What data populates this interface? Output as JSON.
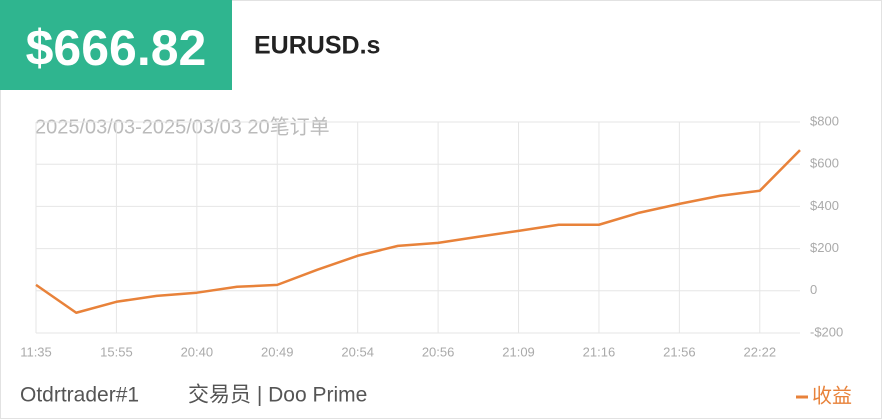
{
  "header": {
    "amount": "$666.82",
    "symbol": "EURUSD.s",
    "subtitle": "2025/03/03-2025/03/03 20笔订单"
  },
  "footer": {
    "trader": "Otdrtrader#1",
    "role": "交易员 | Doo Prime"
  },
  "chart_data": {
    "type": "line",
    "categories": [
      "11:35",
      null,
      "15:55",
      null,
      "20:40",
      null,
      "20:49",
      null,
      "20:54",
      null,
      "20:56",
      null,
      "21:09",
      null,
      "21:16",
      null,
      "21:56",
      null,
      "22:22",
      null
    ],
    "series": [
      {
        "name": "收益",
        "color": "#e8823a",
        "values": [
          28,
          -104,
          -52,
          -24,
          -9,
          19,
          28,
          100,
          166,
          213,
          227,
          256,
          284,
          313,
          313,
          370,
          412,
          450,
          474,
          666.82
        ]
      }
    ],
    "ylim": [
      -200,
      800
    ],
    "yticks": [
      {
        "value": -200,
        "label": "-$200"
      },
      {
        "value": 0,
        "label": "0"
      },
      {
        "value": 200,
        "label": "$200"
      },
      {
        "value": 400,
        "label": "$400"
      },
      {
        "value": 600,
        "label": "$600"
      },
      {
        "value": 800,
        "label": "$800"
      }
    ],
    "grid": true,
    "legend": "bottom-right"
  }
}
